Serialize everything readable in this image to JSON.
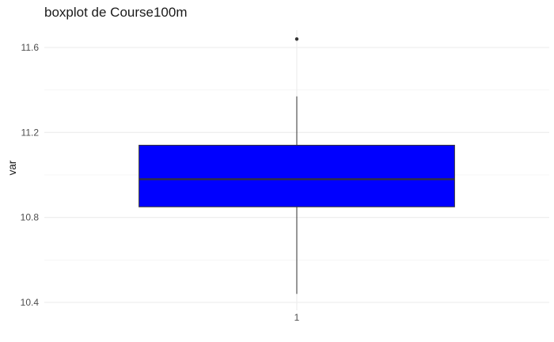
{
  "chart_data": {
    "type": "boxplot",
    "title": "boxplot de Course100m",
    "xlabel": "",
    "ylabel": "var",
    "categories": [
      "1"
    ],
    "ylim": [
      10.4,
      11.6
    ],
    "y_ticks": [
      {
        "value": 10.4,
        "label": "10.4"
      },
      {
        "value": 10.8,
        "label": "10.8"
      },
      {
        "value": 11.2,
        "label": "11.2"
      },
      {
        "value": 11.6,
        "label": "11.6"
      }
    ],
    "boxes": [
      {
        "category": "1",
        "whisker_low": 10.44,
        "q1": 10.85,
        "median": 10.98,
        "q3": 11.14,
        "whisker_high": 11.37,
        "outliers": [
          11.64
        ]
      }
    ],
    "box_fill": "#0000ff",
    "grid": true,
    "legend": "none"
  }
}
